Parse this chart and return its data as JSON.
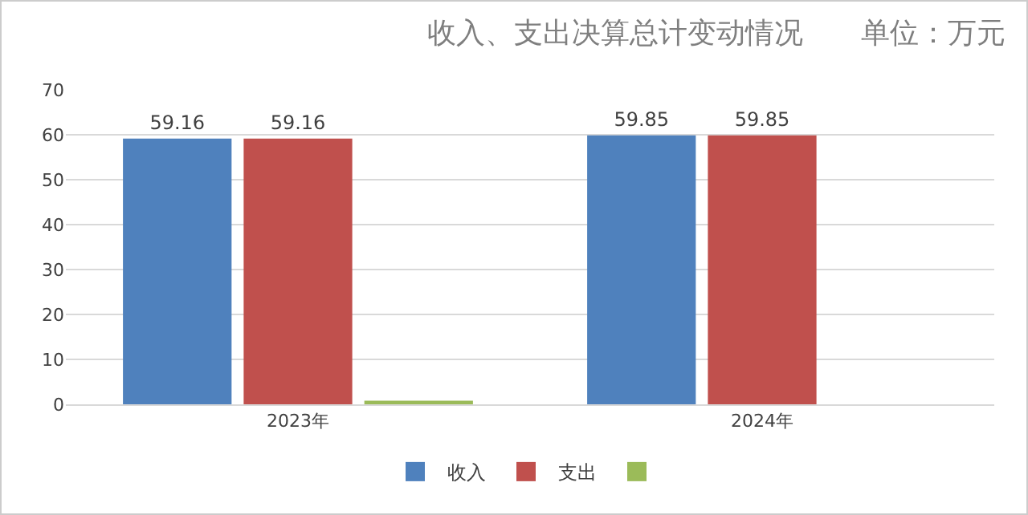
{
  "chart_data": {
    "type": "bar",
    "title": "收入、支出决算总计变动情况　　单位：万元",
    "categories": [
      "2023年",
      "2024年"
    ],
    "series": [
      {
        "name": "收入",
        "color": "#4f81bd",
        "values": [
          59.16,
          59.85
        ],
        "value_labels": [
          "59.16",
          "59.85"
        ]
      },
      {
        "name": "支出",
        "color": "#c0504d",
        "values": [
          59.16,
          59.85
        ],
        "value_labels": [
          "59.16",
          "59.85"
        ]
      },
      {
        "color": "#9bbb59",
        "values": [
          0.8,
          null
        ]
      }
    ],
    "ylim": [
      0,
      70
    ],
    "yticks": [
      0,
      10,
      20,
      30,
      40,
      50,
      60,
      70
    ],
    "grid": "y",
    "legend": "bottom"
  }
}
